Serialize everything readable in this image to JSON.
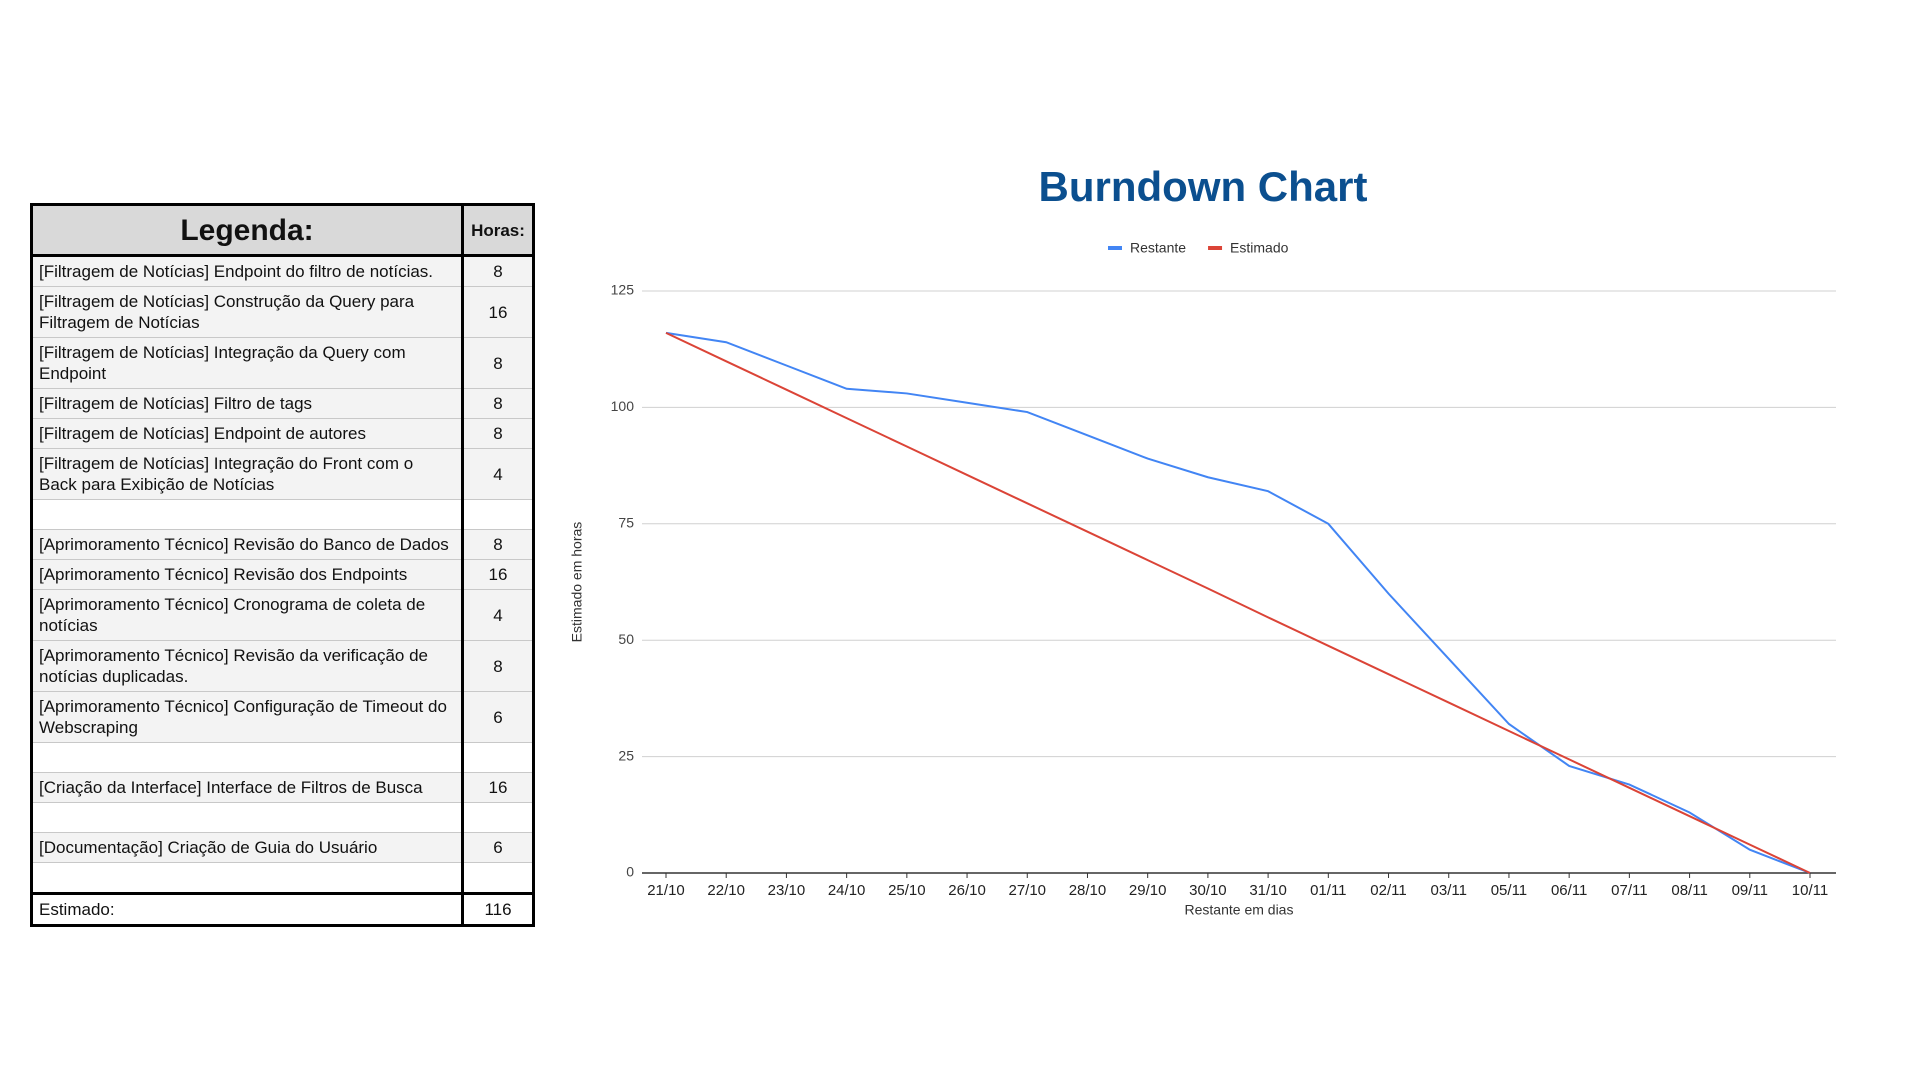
{
  "table": {
    "header": {
      "title": "Legenda:",
      "hours": "Horas:"
    },
    "groups": [
      [
        [
          "[Filtragem de Notícias] Endpoint do filtro de notícias.",
          "8"
        ],
        [
          "[Filtragem de Notícias] Construção da Query para Filtragem de Notícias",
          "16"
        ],
        [
          "[Filtragem de Notícias] Integração da Query com Endpoint",
          "8"
        ],
        [
          "[Filtragem de Notícias] Filtro de tags",
          "8"
        ],
        [
          "[Filtragem de Notícias] Endpoint de autores",
          "8"
        ],
        [
          "[Filtragem de Notícias] Integração do Front com o Back para Exibição de Notícias",
          "4"
        ]
      ],
      [
        [
          "[Aprimoramento Técnico] Revisão do Banco de Dados",
          "8"
        ],
        [
          "[Aprimoramento Técnico] Revisão dos Endpoints",
          "16"
        ],
        [
          "[Aprimoramento Técnico] Cronograma de coleta de notícias",
          "4"
        ],
        [
          "[Aprimoramento Técnico] Revisão da verificação de notícias duplicadas.",
          "8"
        ],
        [
          "[Aprimoramento Técnico] Configuração de Timeout do Webscraping",
          "6"
        ]
      ],
      [
        [
          "[Criação da Interface] Interface de Filtros de Busca",
          "16"
        ]
      ],
      [
        [
          "[Documentação] Criação de Guia do Usuário",
          "6"
        ]
      ]
    ],
    "footer": [
      "Estimado:",
      "116"
    ]
  },
  "chart_data": {
    "type": "line",
    "title": "Burndown Chart",
    "x_label": "Restante em dias",
    "y_label": "Estimado em horas",
    "categories": [
      "21/10",
      "22/10",
      "23/10",
      "24/10",
      "25/10",
      "26/10",
      "27/10",
      "28/10",
      "29/10",
      "30/10",
      "31/10",
      "01/11",
      "02/11",
      "03/11",
      "05/11",
      "06/11",
      "07/11",
      "08/11",
      "09/11",
      "10/11"
    ],
    "series": [
      {
        "name": "Restante",
        "color": "#4285f4",
        "values": [
          116,
          114,
          109,
          104,
          103,
          101,
          99,
          94,
          89,
          85,
          82,
          75,
          60,
          46,
          32,
          23,
          19,
          13,
          5,
          0
        ]
      },
      {
        "name": "Estimado",
        "color": "#db4437",
        "values": [
          116,
          109.9,
          103.8,
          97.7,
          91.6,
          85.5,
          79.4,
          73.3,
          67.2,
          61.1,
          54.9,
          48.8,
          42.7,
          36.6,
          30.5,
          24.4,
          18.3,
          12.2,
          6.1,
          0
        ]
      }
    ],
    "ylim": [
      0,
      125
    ],
    "yticks": [
      0,
      25,
      50,
      75,
      100,
      125
    ],
    "grid": true,
    "legend": "top"
  }
}
